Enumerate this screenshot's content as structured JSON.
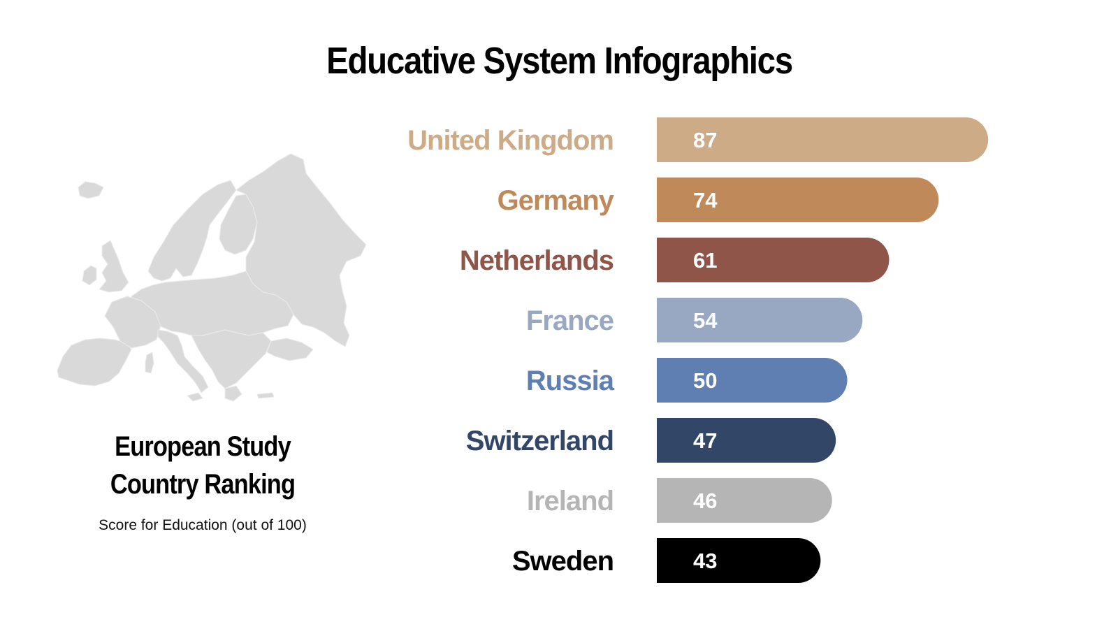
{
  "title": "Educative System Infographics",
  "sidebar": {
    "heading_line1": "European Study",
    "heading_line2": "Country Ranking",
    "subtitle": "Score for Education (out of 100)",
    "map_icon": "europe-map-icon",
    "map_color": "#d9d9d9"
  },
  "chart_data": {
    "type": "bar",
    "orientation": "horizontal",
    "categories": [
      "United Kingdom",
      "Germany",
      "Netherlands",
      "France",
      "Russia",
      "Switzerland",
      "Ireland",
      "Sweden"
    ],
    "values": [
      87,
      74,
      61,
      54,
      50,
      47,
      46,
      43
    ],
    "value_labels": [
      "87",
      "74",
      "61",
      "54",
      "50",
      "47",
      "46",
      "43"
    ],
    "colors": [
      "#cdab86",
      "#c0895a",
      "#8e5548",
      "#98a8c3",
      "#5f7fb3",
      "#324668",
      "#b5b5b5",
      "#000000"
    ],
    "title": "",
    "xlabel": "",
    "ylabel": "",
    "xlim": [
      0,
      100
    ],
    "grid": false,
    "legend": "none"
  }
}
